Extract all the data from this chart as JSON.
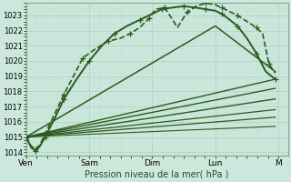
{
  "xlabel": "Pression niveau de la mer( hPa )",
  "background_color": "#cce8dc",
  "grid_major_color": "#aacfbe",
  "grid_minor_color": "#bbdecf",
  "line_color": "#2d5a1e",
  "ylim": [
    1013.8,
    1023.8
  ],
  "xlim": [
    0,
    4.15
  ],
  "xtick_labels": [
    "Ven",
    "Sam",
    "Dim",
    "Lun",
    "M"
  ],
  "xtick_positions": [
    0.0,
    1.0,
    2.0,
    3.0,
    4.0
  ],
  "lines": [
    {
      "x": [
        0.0,
        0.08,
        0.15,
        0.22,
        0.3,
        0.45,
        0.6,
        0.75,
        0.9,
        1.1,
        1.3,
        1.5,
        1.65,
        1.8,
        1.95,
        2.05,
        2.2,
        2.4,
        2.55,
        2.7,
        2.85,
        3.0,
        3.1,
        3.2,
        3.35,
        3.5,
        3.65,
        3.75,
        3.85,
        3.95
      ],
      "y": [
        1015.0,
        1014.4,
        1014.2,
        1014.5,
        1015.2,
        1016.5,
        1017.8,
        1019.0,
        1020.2,
        1020.8,
        1021.3,
        1021.5,
        1021.8,
        1022.2,
        1022.8,
        1023.4,
        1023.5,
        1022.2,
        1023.2,
        1023.6,
        1023.8,
        1023.7,
        1023.5,
        1023.3,
        1023.0,
        1022.6,
        1022.2,
        1021.8,
        1019.8,
        1019.2
      ],
      "style": "dashed",
      "lw": 1.2,
      "marker": "+",
      "markersize": 4,
      "markevery": 2
    },
    {
      "x": [
        0.0,
        0.08,
        0.15,
        0.22,
        0.3,
        0.45,
        0.6,
        0.8,
        1.0,
        1.2,
        1.4,
        1.6,
        1.8,
        2.0,
        2.15,
        2.3,
        2.5,
        2.7,
        2.85,
        3.0,
        3.1,
        3.2,
        3.35,
        3.5,
        3.65,
        3.8,
        3.95
      ],
      "y": [
        1015.0,
        1014.3,
        1014.1,
        1014.4,
        1015.0,
        1016.2,
        1017.5,
        1018.8,
        1020.0,
        1021.0,
        1021.8,
        1022.3,
        1022.7,
        1023.1,
        1023.4,
        1023.5,
        1023.6,
        1023.5,
        1023.4,
        1023.3,
        1023.1,
        1022.8,
        1022.3,
        1021.5,
        1020.5,
        1019.3,
        1018.8
      ],
      "style": "solid",
      "lw": 1.4,
      "marker": "+",
      "markersize": 4,
      "markevery": 2
    },
    {
      "x": [
        0.0,
        3.0,
        3.95
      ],
      "y": [
        1015.0,
        1022.3,
        1019.3
      ],
      "style": "solid",
      "lw": 1.1,
      "marker": null
    },
    {
      "x": [
        0.0,
        3.95
      ],
      "y": [
        1015.0,
        1018.8
      ],
      "style": "solid",
      "lw": 1.0,
      "marker": null
    },
    {
      "x": [
        0.0,
        3.95
      ],
      "y": [
        1015.0,
        1018.2
      ],
      "style": "solid",
      "lw": 1.0,
      "marker": null
    },
    {
      "x": [
        0.0,
        3.95
      ],
      "y": [
        1015.0,
        1017.5
      ],
      "style": "solid",
      "lw": 1.0,
      "marker": null
    },
    {
      "x": [
        0.0,
        3.95
      ],
      "y": [
        1015.0,
        1016.8
      ],
      "style": "solid",
      "lw": 0.9,
      "marker": null
    },
    {
      "x": [
        0.0,
        3.95
      ],
      "y": [
        1015.0,
        1016.3
      ],
      "style": "solid",
      "lw": 0.9,
      "marker": null
    },
    {
      "x": [
        0.0,
        3.95
      ],
      "y": [
        1015.0,
        1015.7
      ],
      "style": "solid",
      "lw": 0.8,
      "marker": null
    }
  ]
}
